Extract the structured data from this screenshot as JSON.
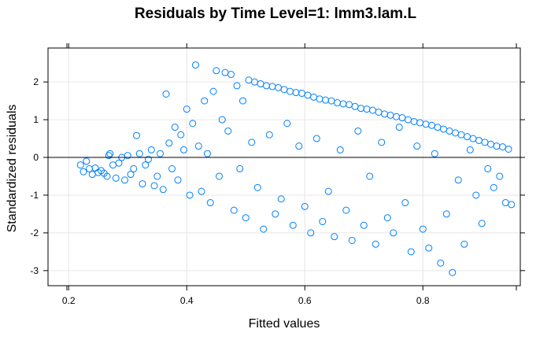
{
  "chart_data": {
    "type": "scatter",
    "title": "Residuals by Time Level=1: lmm3.lam.L",
    "xlabel": "Fitted values",
    "ylabel": "Standardized residuals",
    "xlim": [
      0.165,
      0.965
    ],
    "ylim": [
      -3.4,
      2.9
    ],
    "x_ticks": [
      0.2,
      0.4,
      0.6,
      0.8
    ],
    "x_tick_labels": [
      "0.2",
      "0.4",
      "0.6",
      "0.8"
    ],
    "y_ticks": [
      -3,
      -2,
      -1,
      0,
      1,
      2
    ],
    "y_tick_labels": [
      "-3",
      "-2",
      "-1",
      "0",
      "1",
      "2"
    ],
    "grid": true,
    "reference_line_y": 0,
    "point_color": "#0080ff",
    "marker": "open-circle",
    "series": [
      {
        "values_description_only": false,
        "points": [
          [
            0.22,
            -0.2
          ],
          [
            0.225,
            -0.38
          ],
          [
            0.23,
            -0.1
          ],
          [
            0.235,
            -0.3
          ],
          [
            0.24,
            -0.45
          ],
          [
            0.245,
            -0.28
          ],
          [
            0.25,
            -0.4
          ],
          [
            0.255,
            -0.35
          ],
          [
            0.26,
            -0.42
          ],
          [
            0.265,
            -0.5
          ],
          [
            0.268,
            0.05
          ],
          [
            0.27,
            0.1
          ],
          [
            0.275,
            -0.2
          ],
          [
            0.28,
            -0.55
          ],
          [
            0.285,
            -0.15
          ],
          [
            0.29,
            0.0
          ],
          [
            0.295,
            -0.6
          ],
          [
            0.3,
            0.05
          ],
          [
            0.305,
            -0.45
          ],
          [
            0.31,
            -0.3
          ],
          [
            0.315,
            0.58
          ],
          [
            0.32,
            0.1
          ],
          [
            0.325,
            -0.7
          ],
          [
            0.33,
            -0.2
          ],
          [
            0.335,
            -0.05
          ],
          [
            0.34,
            0.2
          ],
          [
            0.345,
            -0.75
          ],
          [
            0.35,
            -0.5
          ],
          [
            0.355,
            0.1
          ],
          [
            0.36,
            -0.85
          ],
          [
            0.365,
            1.68
          ],
          [
            0.37,
            0.38
          ],
          [
            0.375,
            -0.3
          ],
          [
            0.38,
            0.8
          ],
          [
            0.385,
            -0.6
          ],
          [
            0.39,
            0.6
          ],
          [
            0.395,
            0.2
          ],
          [
            0.4,
            1.28
          ],
          [
            0.405,
            -1.0
          ],
          [
            0.41,
            0.9
          ],
          [
            0.415,
            2.45
          ],
          [
            0.42,
            0.3
          ],
          [
            0.425,
            -0.9
          ],
          [
            0.43,
            1.5
          ],
          [
            0.435,
            0.1
          ],
          [
            0.44,
            -1.2
          ],
          [
            0.445,
            1.75
          ],
          [
            0.45,
            2.3
          ],
          [
            0.455,
            -0.5
          ],
          [
            0.46,
            1.0
          ],
          [
            0.465,
            2.25
          ],
          [
            0.47,
            0.7
          ],
          [
            0.475,
            2.2
          ],
          [
            0.48,
            -1.4
          ],
          [
            0.485,
            1.9
          ],
          [
            0.49,
            -0.3
          ],
          [
            0.495,
            1.5
          ],
          [
            0.5,
            -1.6
          ],
          [
            0.505,
            2.05
          ],
          [
            0.51,
            0.4
          ],
          [
            0.515,
            2.0
          ],
          [
            0.52,
            -0.8
          ],
          [
            0.525,
            1.95
          ],
          [
            0.53,
            -1.9
          ],
          [
            0.535,
            1.9
          ],
          [
            0.54,
            0.6
          ],
          [
            0.545,
            1.88
          ],
          [
            0.55,
            -1.5
          ],
          [
            0.555,
            1.85
          ],
          [
            0.56,
            -1.1
          ],
          [
            0.565,
            1.8
          ],
          [
            0.57,
            0.9
          ],
          [
            0.575,
            1.75
          ],
          [
            0.58,
            -1.8
          ],
          [
            0.585,
            1.72
          ],
          [
            0.59,
            0.3
          ],
          [
            0.595,
            1.7
          ],
          [
            0.6,
            -1.3
          ],
          [
            0.605,
            1.65
          ],
          [
            0.61,
            -2.0
          ],
          [
            0.615,
            1.6
          ],
          [
            0.62,
            0.5
          ],
          [
            0.625,
            1.55
          ],
          [
            0.63,
            -1.7
          ],
          [
            0.635,
            1.52
          ],
          [
            0.64,
            -0.9
          ],
          [
            0.645,
            1.5
          ],
          [
            0.65,
            -2.1
          ],
          [
            0.655,
            1.45
          ],
          [
            0.66,
            0.2
          ],
          [
            0.665,
            1.42
          ],
          [
            0.67,
            -1.4
          ],
          [
            0.675,
            1.4
          ],
          [
            0.68,
            -2.2
          ],
          [
            0.685,
            1.35
          ],
          [
            0.69,
            0.7
          ],
          [
            0.695,
            1.3
          ],
          [
            0.7,
            -1.8
          ],
          [
            0.705,
            1.28
          ],
          [
            0.71,
            -0.5
          ],
          [
            0.715,
            1.25
          ],
          [
            0.72,
            -2.3
          ],
          [
            0.725,
            1.2
          ],
          [
            0.73,
            0.4
          ],
          [
            0.735,
            1.15
          ],
          [
            0.74,
            -1.6
          ],
          [
            0.745,
            1.12
          ],
          [
            0.75,
            -2.0
          ],
          [
            0.755,
            1.08
          ],
          [
            0.76,
            0.8
          ],
          [
            0.765,
            1.05
          ],
          [
            0.77,
            -1.2
          ],
          [
            0.775,
            1.0
          ],
          [
            0.78,
            -2.5
          ],
          [
            0.785,
            0.95
          ],
          [
            0.79,
            0.3
          ],
          [
            0.795,
            0.92
          ],
          [
            0.8,
            -1.9
          ],
          [
            0.805,
            0.88
          ],
          [
            0.81,
            -2.4
          ],
          [
            0.815,
            0.85
          ],
          [
            0.82,
            0.1
          ],
          [
            0.825,
            0.8
          ],
          [
            0.83,
            -2.8
          ],
          [
            0.835,
            0.75
          ],
          [
            0.84,
            -1.5
          ],
          [
            0.845,
            0.7
          ],
          [
            0.85,
            -3.05
          ],
          [
            0.855,
            0.65
          ],
          [
            0.86,
            -0.6
          ],
          [
            0.865,
            0.6
          ],
          [
            0.87,
            -2.3
          ],
          [
            0.875,
            0.55
          ],
          [
            0.88,
            0.2
          ],
          [
            0.885,
            0.5
          ],
          [
            0.89,
            -1.0
          ],
          [
            0.895,
            0.45
          ],
          [
            0.9,
            -1.75
          ],
          [
            0.905,
            0.4
          ],
          [
            0.91,
            -0.3
          ],
          [
            0.915,
            0.35
          ],
          [
            0.92,
            -0.8
          ],
          [
            0.925,
            0.3
          ],
          [
            0.93,
            -0.5
          ],
          [
            0.935,
            0.28
          ],
          [
            0.94,
            -1.2
          ],
          [
            0.945,
            0.22
          ],
          [
            0.95,
            -1.25
          ]
        ]
      }
    ]
  }
}
